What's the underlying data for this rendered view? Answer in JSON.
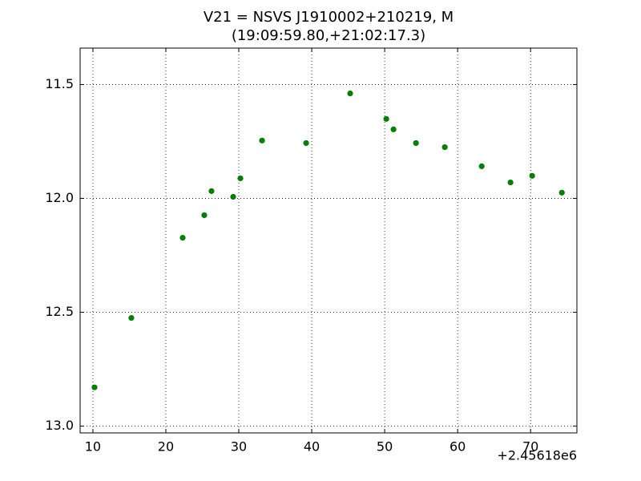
{
  "chart_data": {
    "type": "scatter",
    "title": "V21 = NSVS J1910002+210219, M",
    "subtitle": "(19:09:59.80,+21:02:17.3)",
    "x_offset_label": "+2.45618e6",
    "series": [
      {
        "color": "#008000",
        "x": [
          10.22,
          15.27,
          22.31,
          25.27,
          26.26,
          29.23,
          30.22,
          33.19,
          39.23,
          45.27,
          50.22,
          51.21,
          54.29,
          58.24,
          63.3,
          67.25,
          70.22,
          74.29
        ],
        "values": [
          12.83,
          12.525,
          12.173,
          12.074,
          11.968,
          11.993,
          11.912,
          11.746,
          11.757,
          11.539,
          11.651,
          11.697,
          11.757,
          11.775,
          11.859,
          11.93,
          11.901,
          11.975
        ]
      }
    ],
    "xlim": [
      8.25,
      76.35
    ],
    "ylim": [
      13.03,
      11.34
    ],
    "xticks": [
      10,
      20,
      30,
      40,
      50,
      60,
      70
    ],
    "yticks": [
      11.5,
      {
        "value": 12.0,
        "label": "12.0"
      },
      12.5,
      {
        "value": 13.0,
        "label": "13.0"
      }
    ],
    "grid": true
  }
}
